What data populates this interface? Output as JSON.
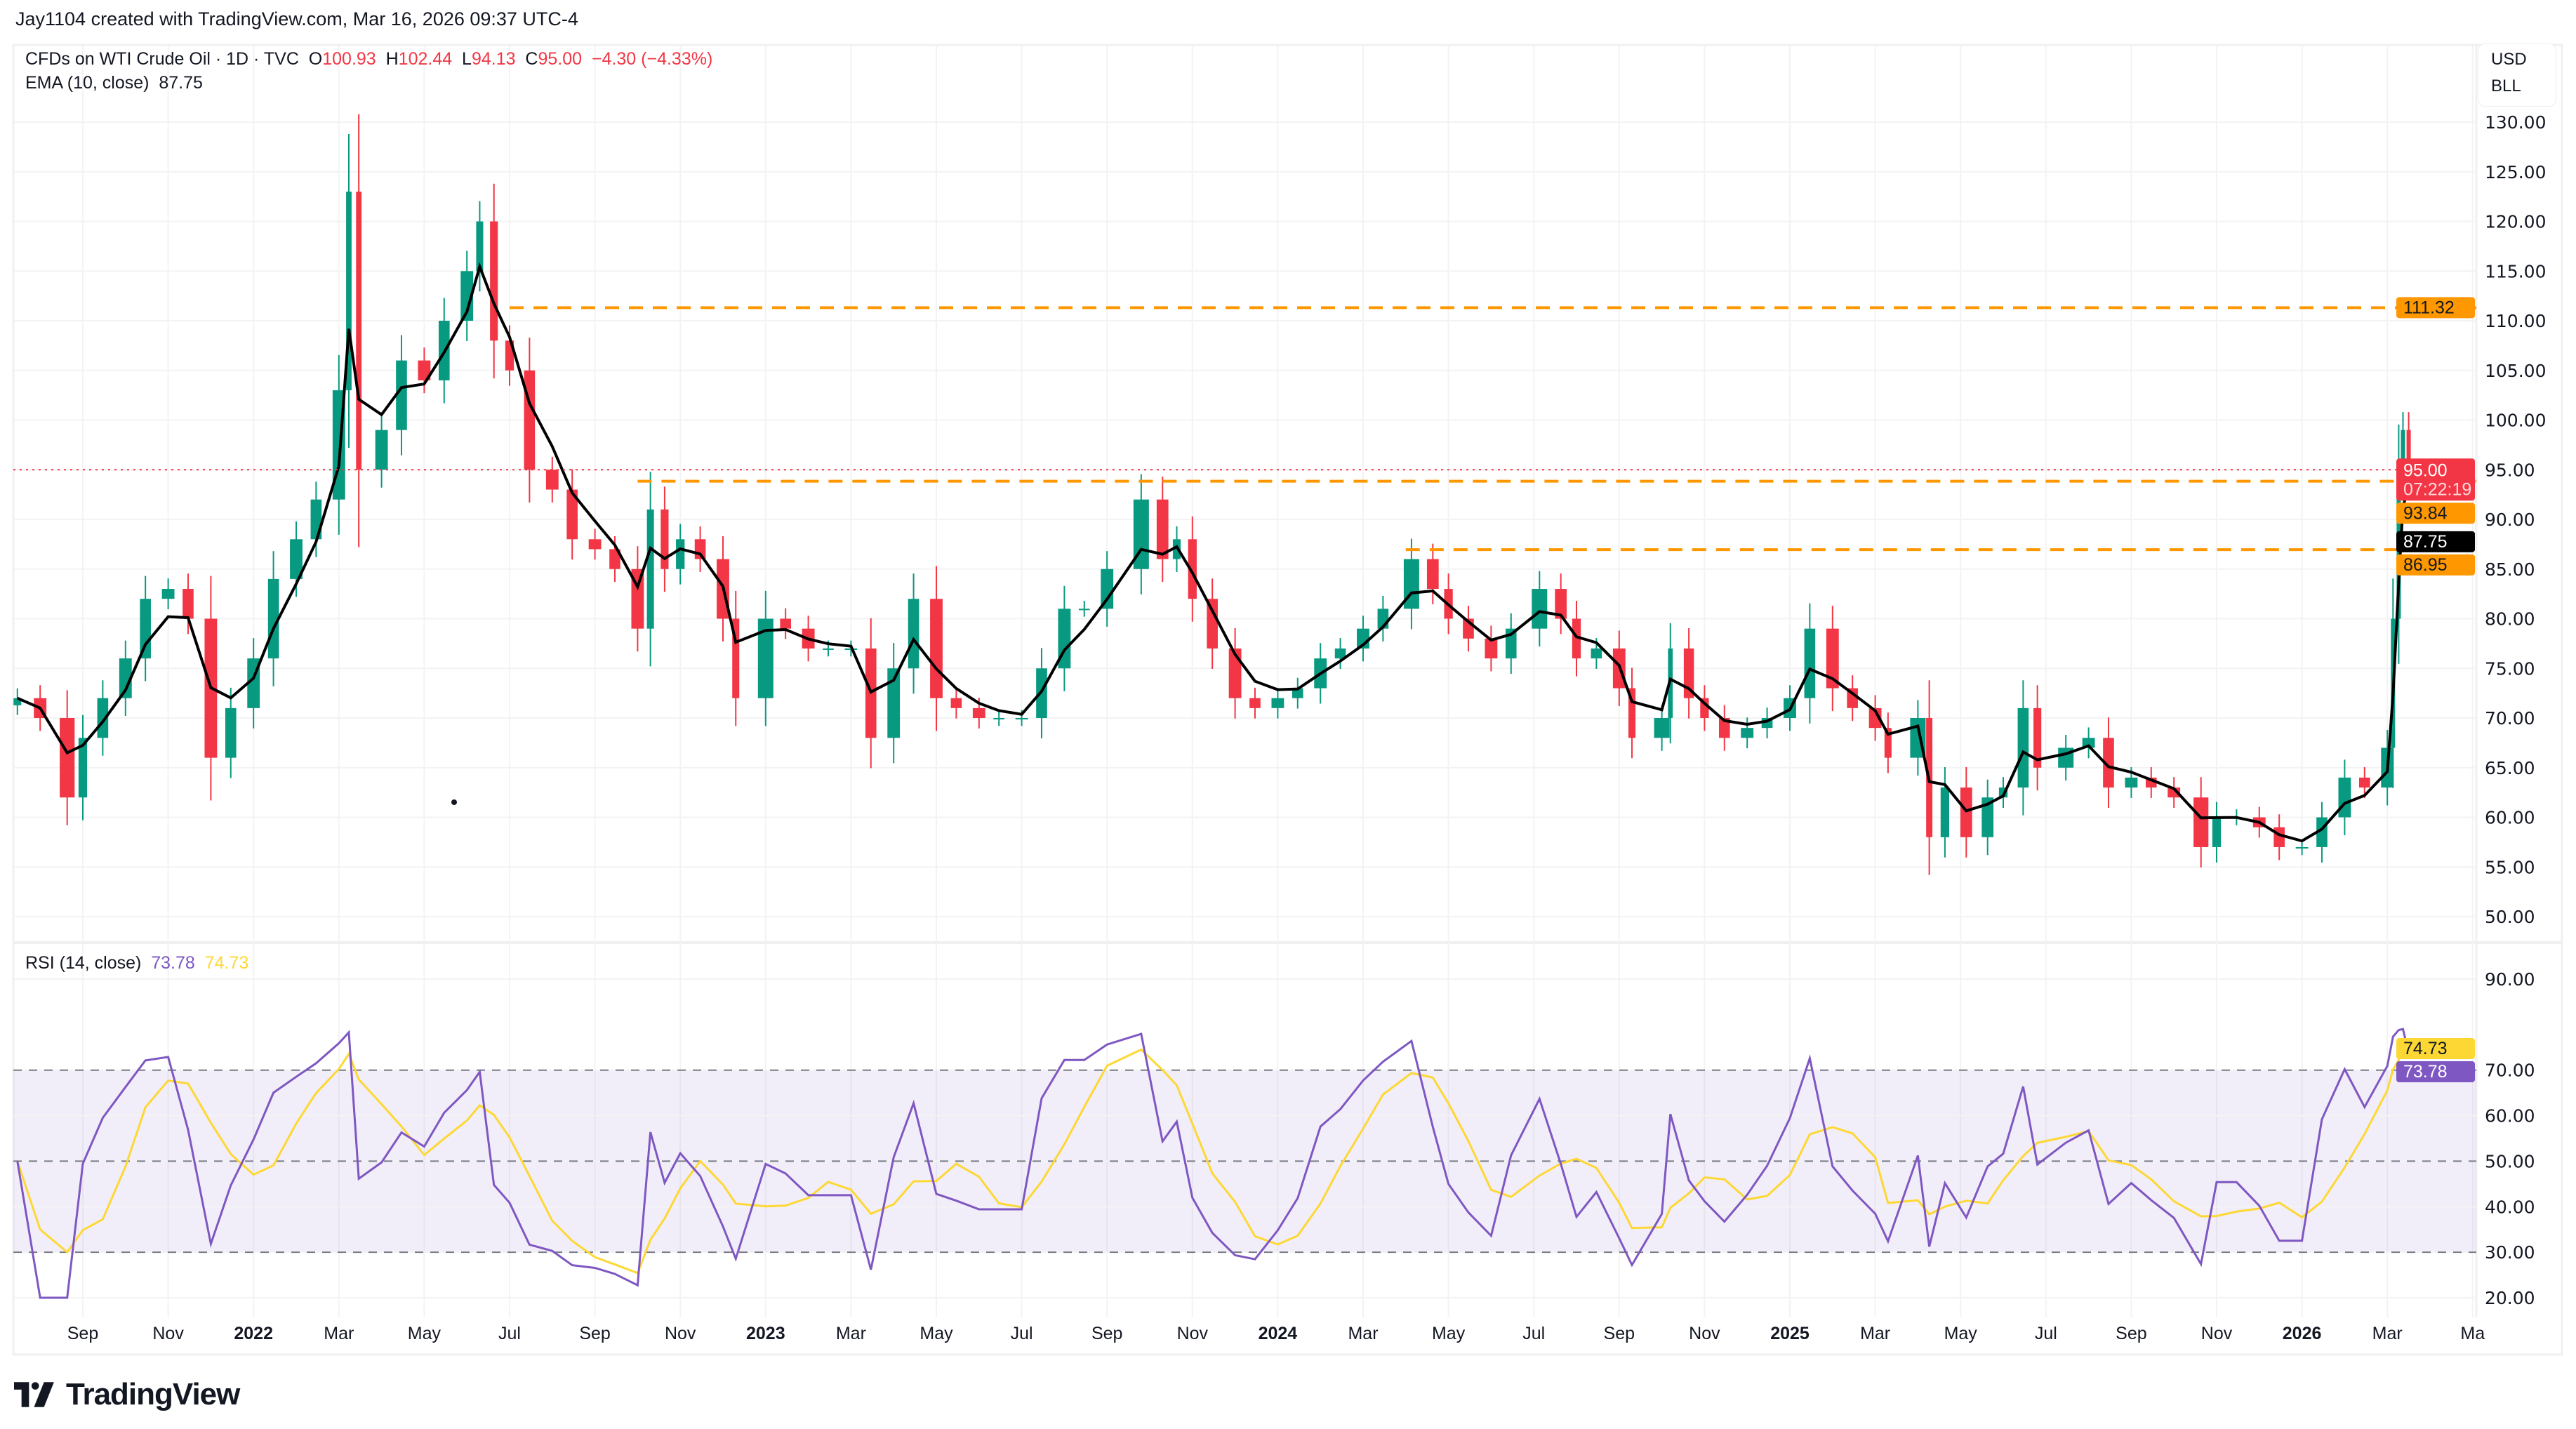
{
  "caption": "Jay1104 created with TradingView.com, Mar 16, 2026 09:37 UTC-4",
  "legend": {
    "symbol": "CFDs on WTI Crude Oil · 1D · TVC",
    "open_label": "O",
    "open": "100.93",
    "high_label": "H",
    "high": "102.44",
    "low_label": "L",
    "low": "94.13",
    "close_label": "C",
    "close": "95.00",
    "change": "−4.30 (−4.33%)",
    "ema_label": "EMA (10, close)",
    "ema_value": "87.75",
    "rsi_label": "RSI (14, close)",
    "rsi_value": "73.78",
    "rsi_ma_value": "74.73"
  },
  "currency": {
    "unit": "USD",
    "measure": "BLL"
  },
  "logo": {
    "text": "TradingView"
  },
  "colors": {
    "up": "#089981",
    "down": "#f23645",
    "ema": "#000000",
    "level": "#ff9800",
    "rsi": "#7e57c2",
    "rsi_ma": "#fdd835",
    "last_price": "#f23645"
  },
  "chart_data": [
    {
      "type": "candlestick",
      "title": "CFDs on WTI Crude Oil · 1D · TVC",
      "ylim": [
        47,
        131
      ],
      "y_ticks": [
        "50.00",
        "55.00",
        "60.00",
        "65.00",
        "70.00",
        "75.00",
        "80.00",
        "85.00",
        "90.00",
        "95.00",
        "100.00",
        "105.00",
        "110.00",
        "115.00",
        "120.00",
        "125.00",
        "130.00"
      ],
      "x_ticks": [
        {
          "label": "Sep",
          "date": "2021-09-01"
        },
        {
          "label": "Nov",
          "date": "2021-11-01"
        },
        {
          "label": "2022",
          "date": "2022-01-01",
          "bold": true
        },
        {
          "label": "Mar",
          "date": "2022-03-01"
        },
        {
          "label": "May",
          "date": "2022-05-01"
        },
        {
          "label": "Jul",
          "date": "2022-07-01"
        },
        {
          "label": "Sep",
          "date": "2022-09-01"
        },
        {
          "label": "Nov",
          "date": "2022-11-01"
        },
        {
          "label": "2023",
          "date": "2023-01-01",
          "bold": true
        },
        {
          "label": "Mar",
          "date": "2023-03-01"
        },
        {
          "label": "May",
          "date": "2023-05-01"
        },
        {
          "label": "Jul",
          "date": "2023-07-01"
        },
        {
          "label": "Sep",
          "date": "2023-09-01"
        },
        {
          "label": "Nov",
          "date": "2023-11-01"
        },
        {
          "label": "2024",
          "date": "2024-01-01",
          "bold": true
        },
        {
          "label": "Mar",
          "date": "2024-03-01"
        },
        {
          "label": "May",
          "date": "2024-05-01"
        },
        {
          "label": "Jul",
          "date": "2024-07-01"
        },
        {
          "label": "Sep",
          "date": "2024-09-01"
        },
        {
          "label": "Nov",
          "date": "2024-11-01"
        },
        {
          "label": "2025",
          "date": "2025-01-01",
          "bold": true
        },
        {
          "label": "Mar",
          "date": "2025-03-01"
        },
        {
          "label": "May",
          "date": "2025-05-01"
        },
        {
          "label": "Jul",
          "date": "2025-07-01"
        },
        {
          "label": "Sep",
          "date": "2025-09-01"
        },
        {
          "label": "Nov",
          "date": "2025-11-01"
        },
        {
          "label": "2026",
          "date": "2026-01-01",
          "bold": true
        },
        {
          "label": "Mar",
          "date": "2026-03-01"
        },
        {
          "label": "Ma",
          "date": "2026-05-01"
        }
      ],
      "closes": [
        [
          "2021-07-15",
          72
        ],
        [
          "2021-08-01",
          70
        ],
        [
          "2021-08-20",
          62
        ],
        [
          "2021-09-01",
          68
        ],
        [
          "2021-09-15",
          72
        ],
        [
          "2021-10-01",
          76
        ],
        [
          "2021-10-15",
          82
        ],
        [
          "2021-11-01",
          83
        ],
        [
          "2021-11-15",
          80
        ],
        [
          "2021-12-01",
          66
        ],
        [
          "2021-12-15",
          71
        ],
        [
          "2022-01-01",
          76
        ],
        [
          "2022-01-15",
          84
        ],
        [
          "2022-02-01",
          88
        ],
        [
          "2022-02-15",
          92
        ],
        [
          "2022-03-01",
          103
        ],
        [
          "2022-03-08",
          123
        ],
        [
          "2022-03-15",
          95
        ],
        [
          "2022-04-01",
          99
        ],
        [
          "2022-04-15",
          106
        ],
        [
          "2022-05-01",
          104
        ],
        [
          "2022-05-15",
          110
        ],
        [
          "2022-06-01",
          115
        ],
        [
          "2022-06-10",
          120
        ],
        [
          "2022-06-20",
          108
        ],
        [
          "2022-07-01",
          105
        ],
        [
          "2022-07-15",
          95
        ],
        [
          "2022-08-01",
          93
        ],
        [
          "2022-08-15",
          88
        ],
        [
          "2022-09-01",
          87
        ],
        [
          "2022-09-15",
          85
        ],
        [
          "2022-10-01",
          79
        ],
        [
          "2022-10-10",
          91
        ],
        [
          "2022-10-20",
          85
        ],
        [
          "2022-11-01",
          88
        ],
        [
          "2022-11-15",
          86
        ],
        [
          "2022-12-01",
          80
        ],
        [
          "2022-12-10",
          72
        ],
        [
          "2023-01-01",
          80
        ],
        [
          "2023-01-15",
          79
        ],
        [
          "2023-02-01",
          77
        ],
        [
          "2023-02-15",
          77
        ],
        [
          "2023-03-01",
          77
        ],
        [
          "2023-03-15",
          68
        ],
        [
          "2023-04-01",
          75
        ],
        [
          "2023-04-15",
          82
        ],
        [
          "2023-05-01",
          72
        ],
        [
          "2023-05-15",
          71
        ],
        [
          "2023-06-01",
          70
        ],
        [
          "2023-06-15",
          70
        ],
        [
          "2023-07-01",
          70
        ],
        [
          "2023-07-15",
          75
        ],
        [
          "2023-08-01",
          81
        ],
        [
          "2023-08-15",
          81
        ],
        [
          "2023-09-01",
          85
        ],
        [
          "2023-09-25",
          92
        ],
        [
          "2023-10-10",
          86
        ],
        [
          "2023-10-20",
          88
        ],
        [
          "2023-11-01",
          82
        ],
        [
          "2023-11-15",
          77
        ],
        [
          "2023-12-01",
          72
        ],
        [
          "2023-12-15",
          71
        ],
        [
          "2024-01-01",
          72
        ],
        [
          "2024-01-15",
          73
        ],
        [
          "2024-02-01",
          76
        ],
        [
          "2024-02-15",
          77
        ],
        [
          "2024-03-01",
          79
        ],
        [
          "2024-03-15",
          81
        ],
        [
          "2024-04-05",
          86
        ],
        [
          "2024-04-20",
          83
        ],
        [
          "2024-05-01",
          80
        ],
        [
          "2024-05-15",
          78
        ],
        [
          "2024-06-01",
          76
        ],
        [
          "2024-06-15",
          79
        ],
        [
          "2024-07-05",
          83
        ],
        [
          "2024-07-20",
          80
        ],
        [
          "2024-08-01",
          76
        ],
        [
          "2024-08-15",
          77
        ],
        [
          "2024-09-01",
          73
        ],
        [
          "2024-09-10",
          68
        ],
        [
          "2024-10-01",
          70
        ],
        [
          "2024-10-07",
          77
        ],
        [
          "2024-10-20",
          72
        ],
        [
          "2024-11-01",
          70
        ],
        [
          "2024-11-15",
          68
        ],
        [
          "2024-12-01",
          69
        ],
        [
          "2024-12-15",
          70
        ],
        [
          "2025-01-01",
          72
        ],
        [
          "2025-01-15",
          79
        ],
        [
          "2025-02-01",
          73
        ],
        [
          "2025-02-15",
          71
        ],
        [
          "2025-03-01",
          69
        ],
        [
          "2025-03-10",
          66
        ],
        [
          "2025-04-01",
          70
        ],
        [
          "2025-04-09",
          58
        ],
        [
          "2025-04-20",
          63
        ],
        [
          "2025-05-05",
          58
        ],
        [
          "2025-05-20",
          62
        ],
        [
          "2025-06-01",
          63
        ],
        [
          "2025-06-15",
          71
        ],
        [
          "2025-06-25",
          65
        ],
        [
          "2025-07-15",
          67
        ],
        [
          "2025-08-01",
          68
        ],
        [
          "2025-08-15",
          63
        ],
        [
          "2025-09-01",
          64
        ],
        [
          "2025-09-15",
          63
        ],
        [
          "2025-10-01",
          62
        ],
        [
          "2025-10-20",
          57
        ],
        [
          "2025-11-01",
          60
        ],
        [
          "2025-11-15",
          60
        ],
        [
          "2025-12-01",
          59
        ],
        [
          "2025-12-15",
          57
        ],
        [
          "2026-01-01",
          57
        ],
        [
          "2026-01-15",
          60
        ],
        [
          "2026-02-01",
          64
        ],
        [
          "2026-02-15",
          63
        ],
        [
          "2026-03-01",
          67
        ],
        [
          "2026-03-05",
          80
        ],
        [
          "2026-03-09",
          95
        ],
        [
          "2026-03-12",
          99
        ],
        [
          "2026-03-16",
          95
        ]
      ],
      "levels": [
        {
          "value": 111.32,
          "label": "111.32",
          "from": "2022-07-01"
        },
        {
          "value": 93.84,
          "label": "93.84",
          "from": "2022-10-01"
        },
        {
          "value": 86.95,
          "label": "86.95",
          "from": "2024-04-01"
        }
      ],
      "last_price": {
        "value": 95.0,
        "label": "95.00",
        "countdown": "07:22:19"
      },
      "ema": {
        "value": 87.75,
        "label": "87.75"
      }
    },
    {
      "type": "line",
      "title": "RSI (14, close)",
      "ylim": [
        16,
        94
      ],
      "y_ticks": [
        "20.00",
        "30.00",
        "40.00",
        "50.00",
        "60.00",
        "70.00",
        "90.00"
      ],
      "bands": [
        30,
        50,
        70
      ],
      "last": {
        "rsi": 73.78,
        "rsi_label": "73.78",
        "ma": 74.73,
        "ma_label": "74.73"
      }
    }
  ]
}
